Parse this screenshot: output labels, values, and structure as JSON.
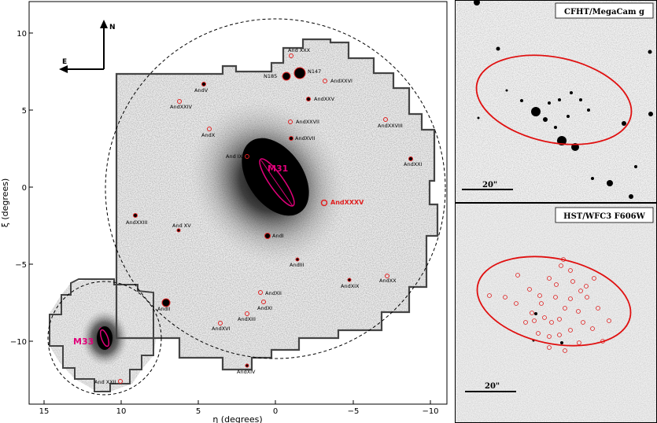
{
  "main_panel": {
    "xlabel": "η (degrees)",
    "ylabel": "ξ (degrees)",
    "x_ticks": [
      "15",
      "10",
      "5",
      "0",
      "−5",
      "−10"
    ],
    "y_ticks": [
      "10",
      "5",
      "0",
      "−5",
      "−10"
    ],
    "compass": {
      "north": "N",
      "east": "E"
    },
    "highlight_labels": {
      "m31": "M31",
      "m33": "M33",
      "new_dwarf": "AndXXXV"
    },
    "object_labels": [
      "And XXX",
      "N185",
      "N147",
      "AndXXVI",
      "AndV",
      "AndXXV",
      "AndXXIV",
      "AndXXVII",
      "AndXXVIII",
      "AndX",
      "AndXVII",
      "And IX",
      "N205",
      "AndXXI",
      "M32",
      "AndXXIII",
      "And XV",
      "AndI",
      "AndIII",
      "AndXIX",
      "AndXX",
      "AndXII",
      "AndII",
      "AndXI",
      "AndXIII",
      "AndXVI",
      "AndXIV",
      "And XXII"
    ]
  },
  "inset_top": {
    "title": "CFHT/MegaCam g",
    "scale_bar": "20\""
  },
  "inset_bottom": {
    "title": "HST/WFC3 F606W",
    "scale_bar": "20\""
  },
  "colors": {
    "highlight": "#e0007a",
    "marker": "#e02020",
    "ellipse": "#e01010",
    "footprint": "#444444"
  }
}
